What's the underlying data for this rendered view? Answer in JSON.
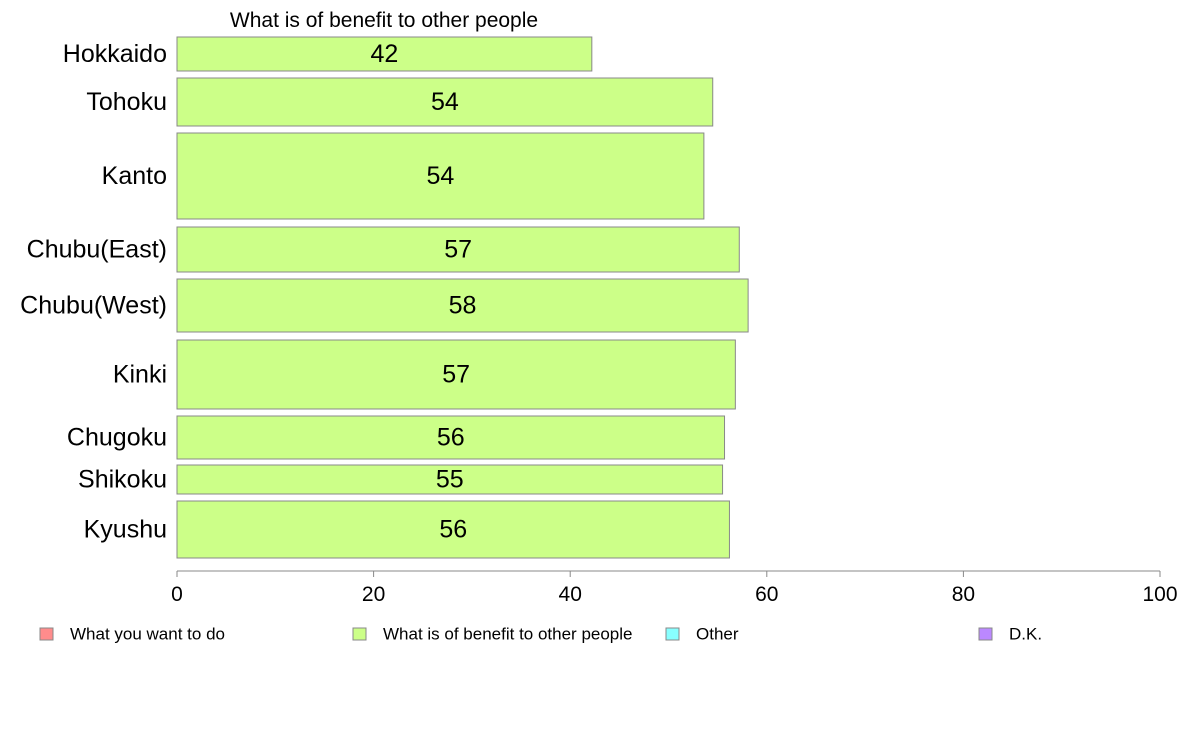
{
  "chart_data": {
    "type": "bar",
    "orientation": "horizontal",
    "title": "What is of benefit to other people",
    "categories": [
      "Hokkaido",
      "Tohoku",
      "Kanto",
      "Chubu(East)",
      "Chubu(West)",
      "Kinki",
      "Chugoku",
      "Shikoku",
      "Kyushu"
    ],
    "series": [
      {
        "name": "What is of benefit to other people",
        "color": "#ccff88",
        "values": [
          42.2,
          54.5,
          53.6,
          57.2,
          58.1,
          56.8,
          55.7,
          55.5,
          56.2
        ],
        "labels": [
          "42",
          "54",
          "54",
          "57",
          "58",
          "57",
          "56",
          "55",
          "56"
        ]
      }
    ],
    "xlim": [
      0,
      100
    ],
    "x_ticks": [
      "0",
      "20",
      "40",
      "60",
      "80",
      "100"
    ],
    "grid": false,
    "bar_border_color": "#888888",
    "legend_position": "bottom",
    "legend": [
      {
        "label": "What you want to do",
        "color": "#ff8c8c"
      },
      {
        "label": "What is of benefit to other people",
        "color": "#ccff88"
      },
      {
        "label": "Other",
        "color": "#88ffff"
      },
      {
        "label": "D.K.",
        "color": "#bb88ff"
      }
    ]
  }
}
